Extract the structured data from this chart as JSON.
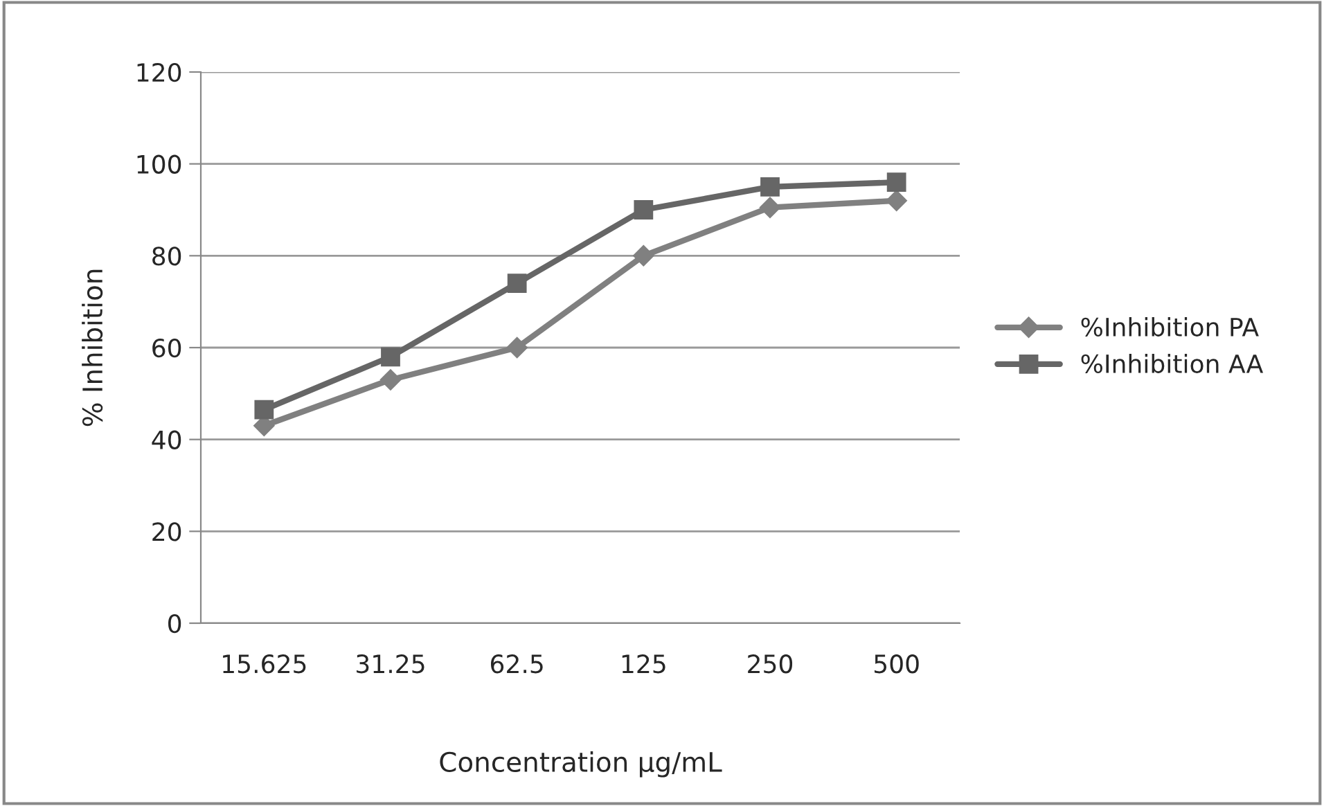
{
  "chart_data": {
    "type": "line",
    "xlabel": "Concentration µg/mL",
    "ylabel": "% Inhibition",
    "categories": [
      "15.625",
      "31.25",
      "62.5",
      "125",
      "250",
      "500"
    ],
    "series": [
      {
        "name": "%Inhibition PA",
        "color": "#808080",
        "marker": "diamond",
        "values": [
          43,
          53,
          60,
          80,
          90.5,
          92
        ]
      },
      {
        "name": "%Inhibition AA",
        "color": "#666666",
        "marker": "square",
        "values": [
          46.5,
          58,
          74,
          90,
          95,
          96
        ]
      }
    ],
    "ylim": [
      0,
      120
    ],
    "yticks": [
      0,
      20,
      40,
      60,
      80,
      100,
      120
    ],
    "grid": "y",
    "legend": "right",
    "line_style": "solid"
  }
}
